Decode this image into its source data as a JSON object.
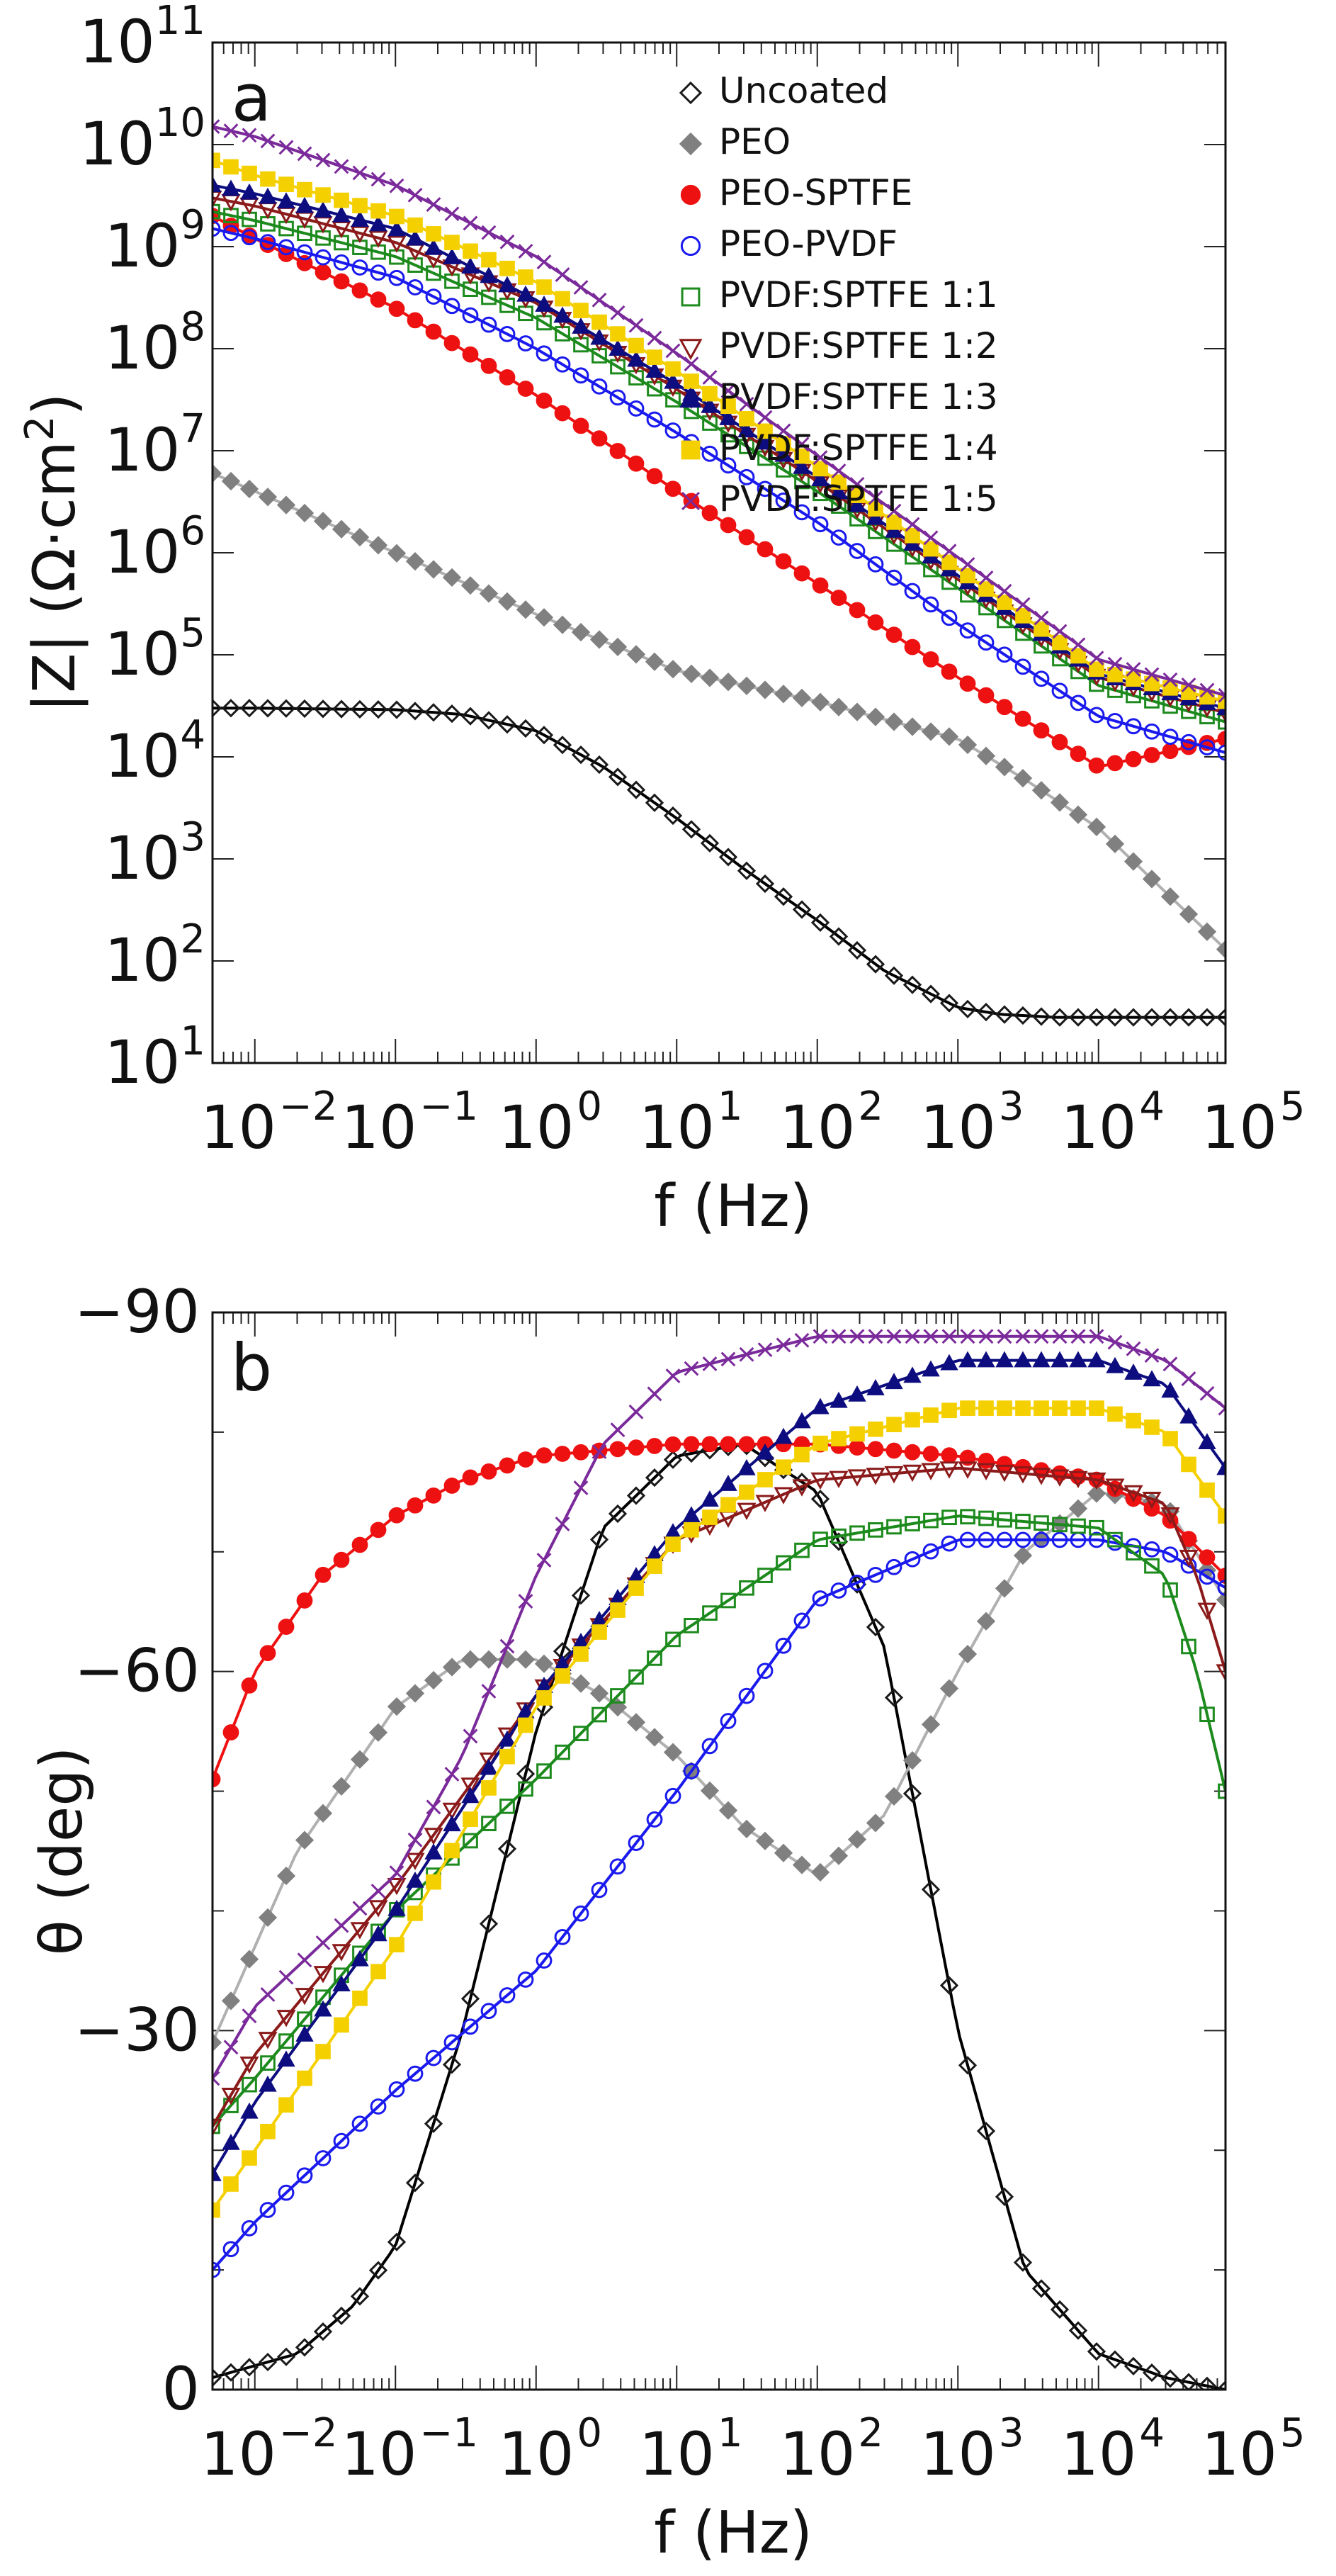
{
  "chart_data": [
    {
      "panel": "a",
      "type": "scatter",
      "title": "",
      "xlabel": "f (Hz)",
      "ylabel_pre": "|Z| (Ω·cm",
      "ylabel_sup": "2",
      "ylabel_post": ")",
      "xscale": "log",
      "yscale": "log",
      "xlim": [
        0.005,
        80000
      ],
      "ylim": [
        10,
        100000000000
      ],
      "x_ticks": [
        {
          "value": 0.01,
          "base": "10",
          "exp": "−2"
        },
        {
          "value": 0.1,
          "base": "10",
          "exp": "−1"
        },
        {
          "value": 1,
          "base": "10",
          "exp": "0"
        },
        {
          "value": 10,
          "base": "10",
          "exp": "1"
        },
        {
          "value": 100,
          "base": "10",
          "exp": "2"
        },
        {
          "value": 1000,
          "base": "10",
          "exp": "3"
        },
        {
          "value": 10000,
          "base": "10",
          "exp": "4"
        },
        {
          "value": 100000,
          "base": "10",
          "exp": "5"
        }
      ],
      "y_ticks": [
        {
          "value": 10,
          "base": "10",
          "exp": "1"
        },
        {
          "value": 100,
          "base": "10",
          "exp": "2"
        },
        {
          "value": 1000,
          "base": "10",
          "exp": "3"
        },
        {
          "value": 10000,
          "base": "10",
          "exp": "4"
        },
        {
          "value": 100000,
          "base": "10",
          "exp": "5"
        },
        {
          "value": 1000000,
          "base": "10",
          "exp": "6"
        },
        {
          "value": 10000000,
          "base": "10",
          "exp": "7"
        },
        {
          "value": 100000000,
          "base": "10",
          "exp": "8"
        },
        {
          "value": 1000000000,
          "base": "10",
          "exp": "9"
        },
        {
          "value": 10000000000,
          "base": "10",
          "exp": "10"
        },
        {
          "value": 100000000000,
          "base": "10",
          "exp": "11"
        }
      ],
      "legend_position": "top-right",
      "series": [
        {
          "name": "Uncoated",
          "color": "#1a1a1a",
          "line_color": "#000000",
          "marker": "diamond-open",
          "x": [
            0.005,
            0.01,
            0.1,
            0.3,
            1,
            3,
            10,
            30,
            100,
            300,
            1000,
            2000,
            5000,
            10000,
            80000
          ],
          "y": [
            30000,
            30000,
            29000,
            26000,
            18000,
            8000,
            2500,
            800,
            250,
            80,
            35,
            30,
            28,
            28,
            28
          ]
        },
        {
          "name": "PEO",
          "color": "#808080",
          "line_color": "#b0b0b0",
          "marker": "diamond-filled",
          "x": [
            0.005,
            0.01,
            0.1,
            1,
            10,
            100,
            1000,
            3000,
            10000,
            80000
          ],
          "y": [
            6000000,
            4000000,
            1000000,
            250000,
            70000,
            35000,
            15000,
            6000,
            2000,
            130
          ]
        },
        {
          "name": "PEO-SPTFE",
          "color": "#ee1111",
          "line_color": "#ee1111",
          "marker": "circle-filled",
          "x": [
            0.005,
            0.01,
            0.1,
            1,
            10,
            100,
            1000,
            10000,
            80000
          ],
          "y": [
            2000000000,
            1200000000,
            250000000,
            35000000,
            4000000,
            500000,
            60000,
            8000,
            15000
          ]
        },
        {
          "name": "PEO-PVDF",
          "color": "#1a1aee",
          "line_color": "#1a1aee",
          "marker": "circle-open",
          "x": [
            0.005,
            0.01,
            0.1,
            1,
            10,
            100,
            1000,
            10000,
            80000
          ],
          "y": [
            1500000000,
            1200000000,
            500000000,
            100000000,
            15000000,
            2000000,
            200000,
            25000,
            11000
          ]
        },
        {
          "name": "PVDF:SPTFE 1:1",
          "color": "#1c8a1c",
          "line_color": "#1c8a1c",
          "marker": "square-open",
          "x": [
            0.005,
            0.01,
            0.1,
            1,
            10,
            100,
            1000,
            10000,
            80000
          ],
          "y": [
            2200000000,
            1800000000,
            800000000,
            200000000,
            30000000,
            4000000,
            450000,
            50000,
            22000
          ]
        },
        {
          "name": "PVDF:SPTFE 1:2",
          "color": "#8b1a1a",
          "line_color": "#8b1a1a",
          "marker": "tri-down-open",
          "x": [
            0.005,
            0.01,
            0.1,
            1,
            10,
            100,
            1000,
            10000,
            80000
          ],
          "y": [
            3000000000,
            2500000000,
            1100000000,
            280000000,
            40000000,
            5000000,
            550000,
            60000,
            27000
          ]
        },
        {
          "name": "PVDF:SPTFE 1:3",
          "color": "#0d0d80",
          "line_color": "#0d0d80",
          "marker": "tri-up-filled",
          "x": [
            0.005,
            0.01,
            0.1,
            1,
            10,
            100,
            1000,
            10000,
            80000
          ],
          "y": [
            4000000000,
            3300000000,
            1500000000,
            300000000,
            45000000,
            5500000,
            600000,
            65000,
            30000
          ]
        },
        {
          "name": "PVDF:SPTFE 1:4",
          "color": "#f5d000",
          "line_color": "#f5d000",
          "marker": "square-filled",
          "x": [
            0.005,
            0.01,
            0.1,
            1,
            10,
            100,
            1000,
            10000,
            80000
          ],
          "y": [
            7000000000,
            5000000000,
            2000000000,
            450000000,
            60000000,
            7000000,
            700000,
            70000,
            35000
          ]
        },
        {
          "name": "PVDF:SPTFE 1:5",
          "color": "#7a2a9a",
          "line_color": "#7a2a9a",
          "marker": "cross",
          "x": [
            0.005,
            0.01,
            0.1,
            1,
            10,
            100,
            1000,
            10000,
            80000
          ],
          "y": [
            15000000000,
            12000000000,
            4000000000,
            800000000,
            90000000,
            9000000,
            900000,
            90000,
            40000
          ]
        }
      ]
    },
    {
      "panel": "b",
      "type": "scatter",
      "title": "",
      "xlabel": "f (Hz)",
      "ylabel": "θ (deg)",
      "xscale": "log",
      "yscale": "linear",
      "xlim": [
        0.005,
        80000
      ],
      "ylim": [
        0,
        -90
      ],
      "x_ticks": [
        {
          "value": 0.01,
          "base": "10",
          "exp": "−2"
        },
        {
          "value": 0.1,
          "base": "10",
          "exp": "−1"
        },
        {
          "value": 1,
          "base": "10",
          "exp": "0"
        },
        {
          "value": 10,
          "base": "10",
          "exp": "1"
        },
        {
          "value": 100,
          "base": "10",
          "exp": "2"
        },
        {
          "value": 1000,
          "base": "10",
          "exp": "3"
        },
        {
          "value": 10000,
          "base": "10",
          "exp": "4"
        },
        {
          "value": 100000,
          "base": "10",
          "exp": "5"
        }
      ],
      "y_ticks": [
        {
          "value": 0,
          "label": "0"
        },
        {
          "value": -30,
          "label": "−30"
        },
        {
          "value": -60,
          "label": "−60"
        },
        {
          "value": -90,
          "label": "−90"
        }
      ],
      "series": [
        {
          "name": "Uncoated",
          "color": "#1a1a1a",
          "line_color": "#000000",
          "marker": "diamond-open",
          "x": [
            0.005,
            0.02,
            0.05,
            0.1,
            0.3,
            1,
            3,
            10,
            30,
            100,
            300,
            1000,
            3000,
            10000,
            30000,
            80000
          ],
          "y": [
            -1,
            -3,
            -7,
            -12,
            -30,
            -55,
            -72,
            -78,
            -79,
            -75,
            -62,
            -30,
            -10,
            -3,
            -1,
            0
          ]
        },
        {
          "name": "PEO",
          "color": "#808080",
          "line_color": "#b0b0b0",
          "marker": "diamond-filled",
          "x": [
            0.005,
            0.02,
            0.1,
            0.3,
            1,
            3,
            10,
            30,
            100,
            300,
            1000,
            3000,
            10000,
            30000,
            80000
          ],
          "y": [
            -29,
            -45,
            -57,
            -61,
            -61,
            -58,
            -53,
            -47,
            -43,
            -48,
            -60,
            -70,
            -75,
            -74,
            -66
          ]
        },
        {
          "name": "PEO-SPTFE",
          "color": "#ee1111",
          "line_color": "#ee1111",
          "marker": "circle-filled",
          "x": [
            0.005,
            0.01,
            0.03,
            0.1,
            0.3,
            1,
            10,
            100,
            1000,
            10000,
            30000,
            80000
          ],
          "y": [
            -51,
            -60,
            -68,
            -73,
            -76,
            -78,
            -79,
            -79,
            -78,
            -76,
            -73,
            -68
          ]
        },
        {
          "name": "PEO-PVDF",
          "color": "#1a1aee",
          "line_color": "#1a1aee",
          "marker": "circle-open",
          "x": [
            0.005,
            0.01,
            0.1,
            1,
            10,
            100,
            1000,
            10000,
            30000,
            80000
          ],
          "y": [
            -10,
            -14,
            -25,
            -35,
            -50,
            -66,
            -71,
            -71,
            -70,
            -67
          ]
        },
        {
          "name": "PVDF:SPTFE 1:1",
          "color": "#1c8a1c",
          "line_color": "#1c8a1c",
          "marker": "square-open",
          "x": [
            0.005,
            0.01,
            0.1,
            1,
            10,
            100,
            1000,
            10000,
            30000,
            50000,
            80000
          ],
          "y": [
            -22,
            -26,
            -40,
            -51,
            -63,
            -71,
            -73,
            -72,
            -68,
            -60,
            -50
          ]
        },
        {
          "name": "PVDF:SPTFE 1:2",
          "color": "#8b1a1a",
          "line_color": "#8b1a1a",
          "marker": "tri-down-open",
          "x": [
            0.005,
            0.01,
            0.1,
            1,
            10,
            100,
            1000,
            10000,
            30000,
            50000,
            80000
          ],
          "y": [
            -22,
            -28,
            -42,
            -58,
            -71,
            -76,
            -77,
            -76,
            -74,
            -68,
            -60
          ]
        },
        {
          "name": "PVDF:SPTFE 1:3",
          "color": "#0d0d80",
          "line_color": "#0d0d80",
          "marker": "tri-up-filled",
          "x": [
            0.005,
            0.01,
            0.1,
            1,
            10,
            100,
            1000,
            10000,
            30000,
            80000
          ],
          "y": [
            -18,
            -24,
            -40,
            -58,
            -72,
            -82,
            -86,
            -86,
            -84,
            -77
          ]
        },
        {
          "name": "PVDF:SPTFE 1:4",
          "color": "#f5d000",
          "line_color": "#f5d000",
          "marker": "square-filled",
          "x": [
            0.005,
            0.01,
            0.1,
            1,
            10,
            100,
            1000,
            10000,
            30000,
            80000
          ],
          "y": [
            -15,
            -20,
            -37,
            -57,
            -71,
            -79,
            -82,
            -82,
            -80,
            -73
          ]
        },
        {
          "name": "PVDF:SPTFE 1:5",
          "color": "#7a2a9a",
          "line_color": "#7a2a9a",
          "marker": "cross",
          "x": [
            0.005,
            0.01,
            0.1,
            0.3,
            1,
            3,
            10,
            100,
            1000,
            10000,
            30000,
            80000
          ],
          "y": [
            -26,
            -32,
            -43,
            -53,
            -68,
            -79,
            -85,
            -88,
            -88,
            -88,
            -86,
            -82
          ]
        }
      ]
    }
  ]
}
